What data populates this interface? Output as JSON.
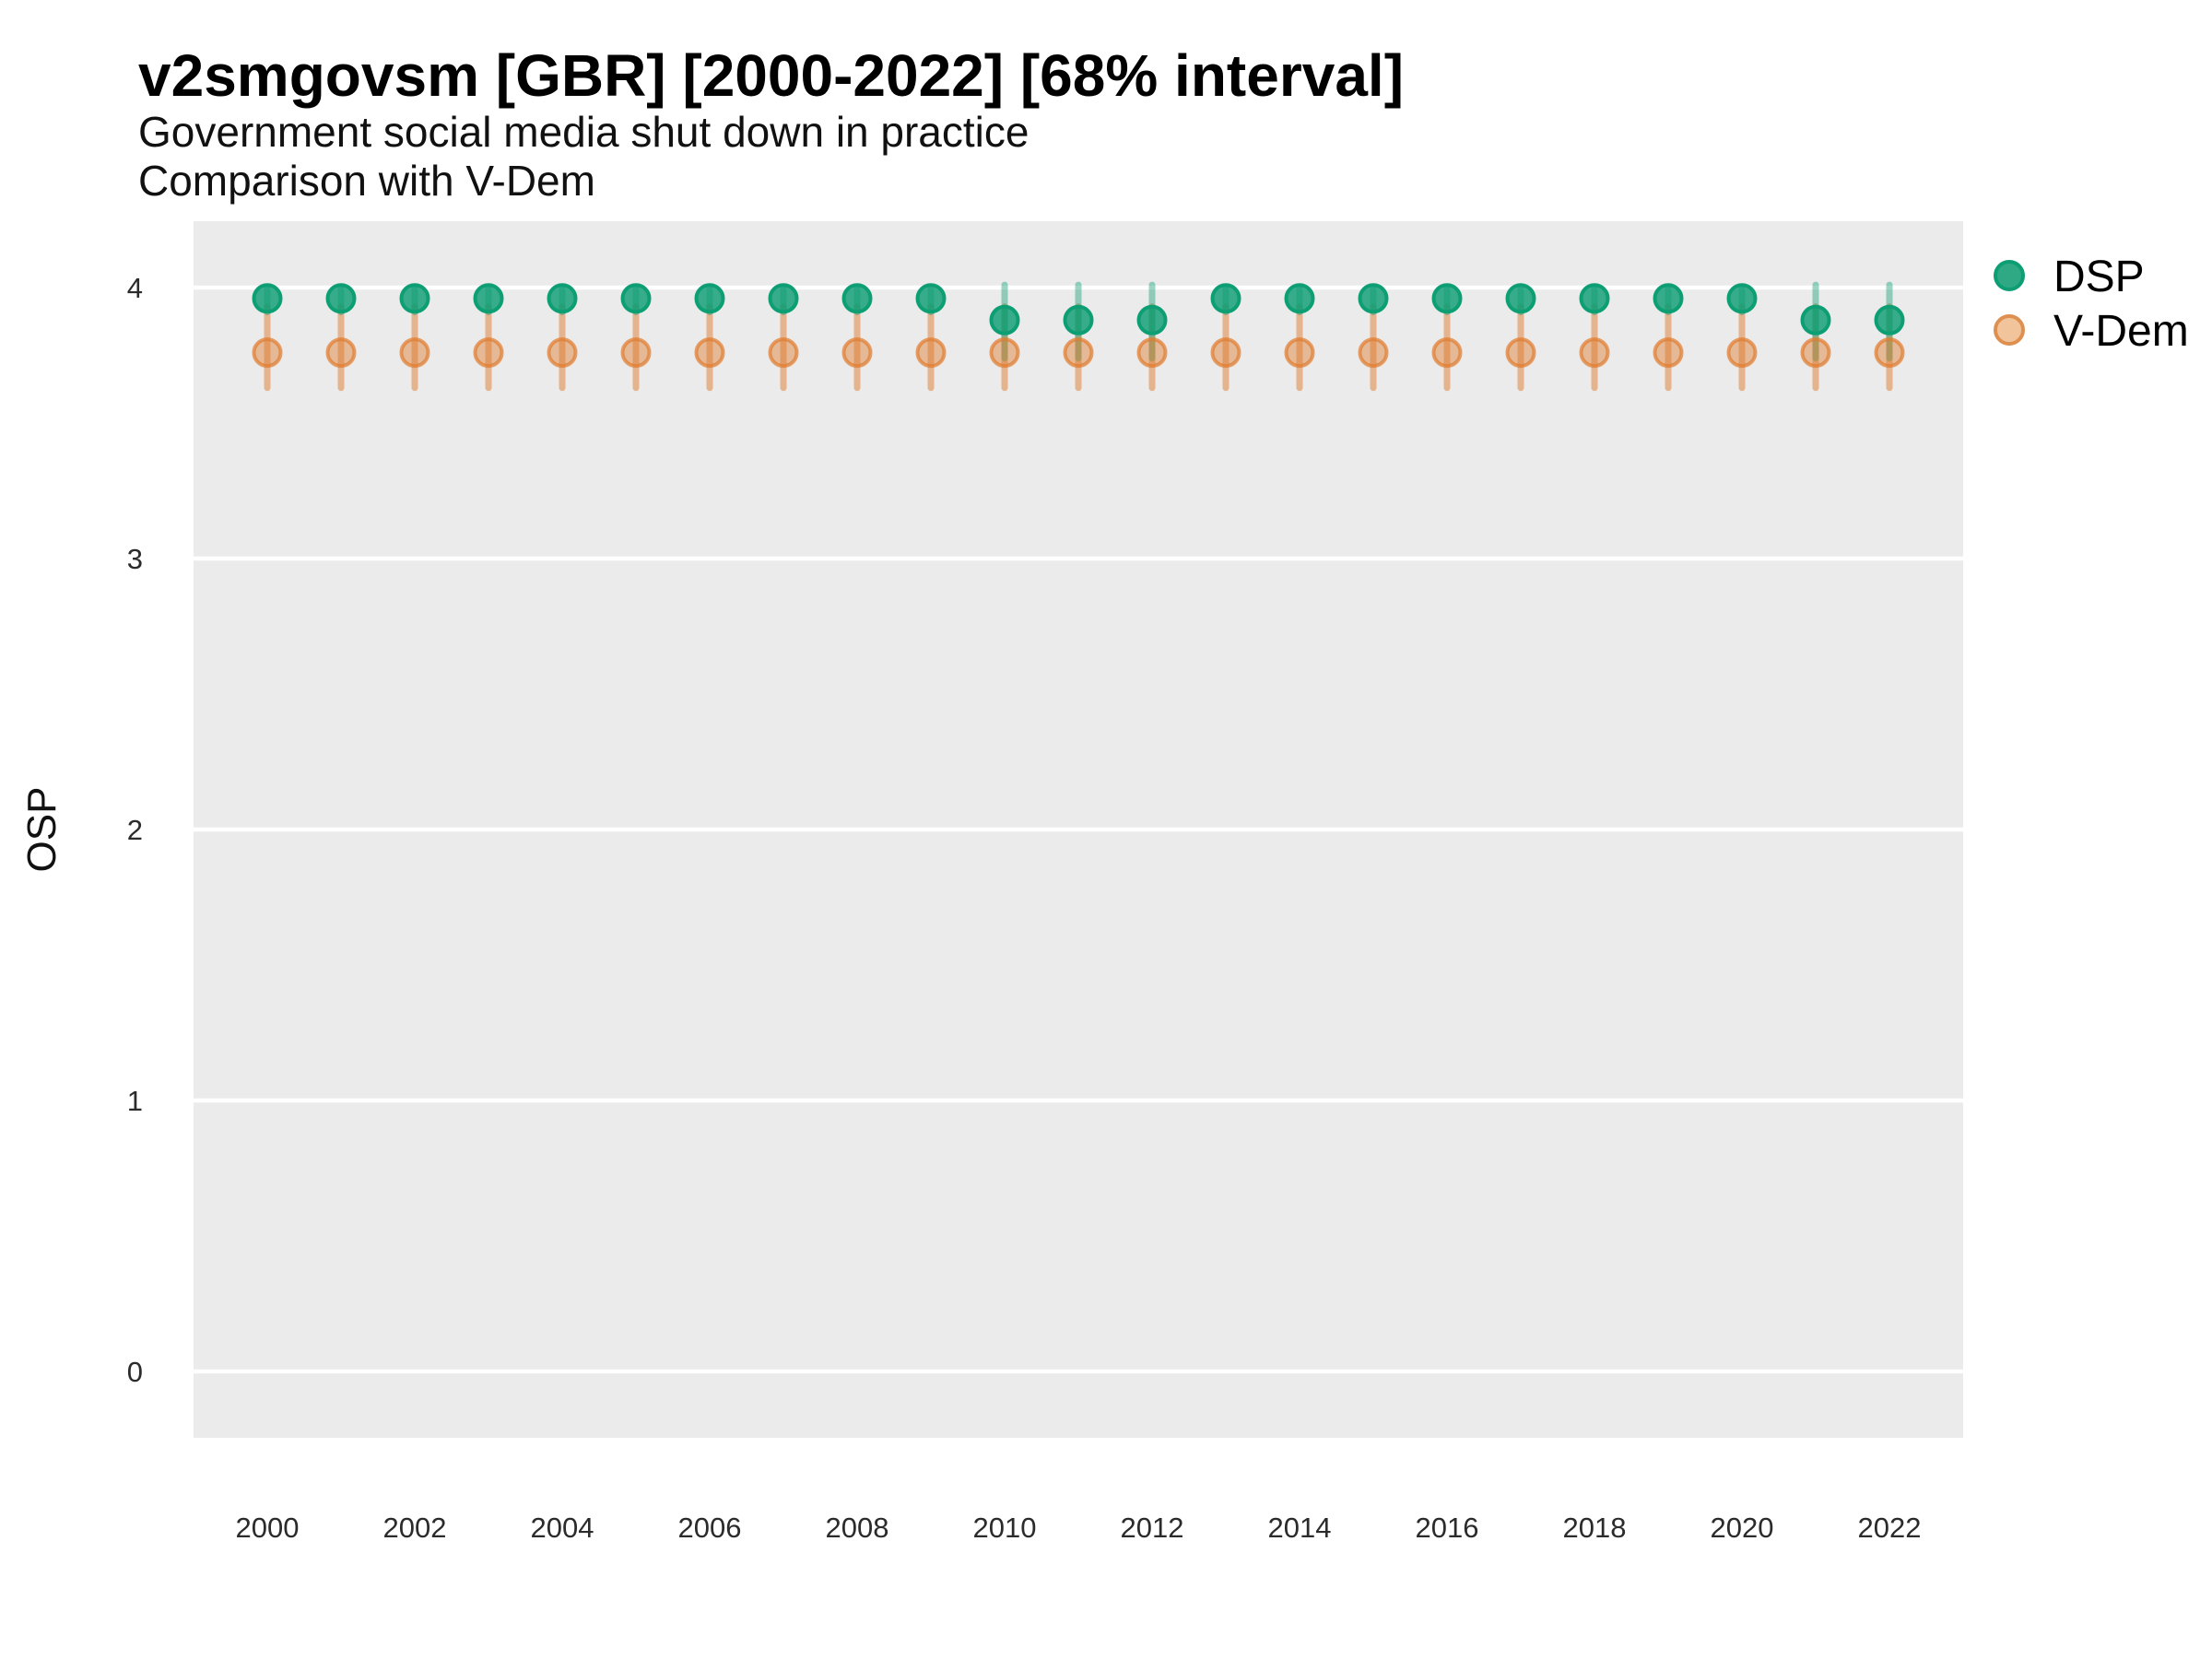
{
  "title": "v2smgovsm [GBR] [2000-2022] [68% interval]",
  "subtitle1": "Government social media shut down in practice",
  "subtitle2": "Comparison with V-Dem",
  "ylabel": "OSP",
  "legend": {
    "entries": [
      {
        "label": "DSP",
        "fill": "#2EA984",
        "stroke": "#0E9E74"
      },
      {
        "label": "V-Dem",
        "fill": "#F2C49C",
        "stroke": "#DE9050"
      }
    ]
  },
  "chart_data": {
    "type": "pointrange",
    "title": "v2smgovsm [GBR] [2000-2022] [68% interval]",
    "subtitle": "Government social media shut down in practice — Comparison with V-Dem",
    "xlabel": "",
    "ylabel": "OSP",
    "x": [
      2000,
      2001,
      2002,
      2003,
      2004,
      2005,
      2006,
      2007,
      2008,
      2009,
      2010,
      2011,
      2012,
      2013,
      2014,
      2015,
      2016,
      2017,
      2018,
      2019,
      2020,
      2021,
      2022
    ],
    "series": [
      {
        "name": "DSP",
        "color": "#0E9E74",
        "values": [
          3.96,
          3.96,
          3.96,
          3.96,
          3.96,
          3.96,
          3.96,
          3.96,
          3.96,
          3.96,
          3.88,
          3.88,
          3.88,
          3.96,
          3.96,
          3.96,
          3.96,
          3.96,
          3.96,
          3.96,
          3.96,
          3.88,
          3.88
        ],
        "lower": [
          3.91,
          3.91,
          3.91,
          3.91,
          3.91,
          3.91,
          3.91,
          3.91,
          3.91,
          3.91,
          3.74,
          3.74,
          3.74,
          3.91,
          3.91,
          3.91,
          3.91,
          3.91,
          3.91,
          3.91,
          3.91,
          3.74,
          3.74
        ],
        "upper": [
          4.0,
          4.0,
          4.0,
          4.0,
          4.0,
          4.0,
          4.0,
          4.0,
          4.0,
          4.0,
          4.01,
          4.01,
          4.01,
          4.0,
          4.0,
          4.0,
          4.0,
          4.0,
          4.0,
          4.0,
          4.0,
          4.01,
          4.01
        ]
      },
      {
        "name": "V-Dem",
        "color": "#E07C2F",
        "values": [
          3.76,
          3.76,
          3.76,
          3.76,
          3.76,
          3.76,
          3.76,
          3.76,
          3.76,
          3.76,
          3.76,
          3.76,
          3.76,
          3.76,
          3.76,
          3.76,
          3.76,
          3.76,
          3.76,
          3.76,
          3.76,
          3.76,
          3.76
        ],
        "lower": [
          3.63,
          3.63,
          3.63,
          3.63,
          3.63,
          3.63,
          3.63,
          3.63,
          3.63,
          3.63,
          3.63,
          3.63,
          3.63,
          3.63,
          3.63,
          3.63,
          3.63,
          3.63,
          3.63,
          3.63,
          3.63,
          3.63,
          3.63
        ],
        "upper": [
          3.93,
          3.93,
          3.93,
          3.93,
          3.93,
          3.93,
          3.93,
          3.93,
          3.93,
          3.93,
          3.93,
          3.93,
          3.93,
          3.93,
          3.93,
          3.93,
          3.93,
          3.93,
          3.93,
          3.93,
          3.93,
          3.93,
          3.93
        ]
      }
    ],
    "xticks": [
      2000,
      2002,
      2004,
      2006,
      2008,
      2010,
      2012,
      2014,
      2016,
      2018,
      2020,
      2022
    ],
    "yticks": [
      0,
      1,
      2,
      3,
      4
    ],
    "xlim": [
      1999,
      2023
    ],
    "ylim": [
      -0.245,
      4.245
    ],
    "grid": "horizontal-major-white",
    "panel_bg": "#EBEBEB",
    "grid_color": "#FFFFFF",
    "legend_position": "right"
  }
}
